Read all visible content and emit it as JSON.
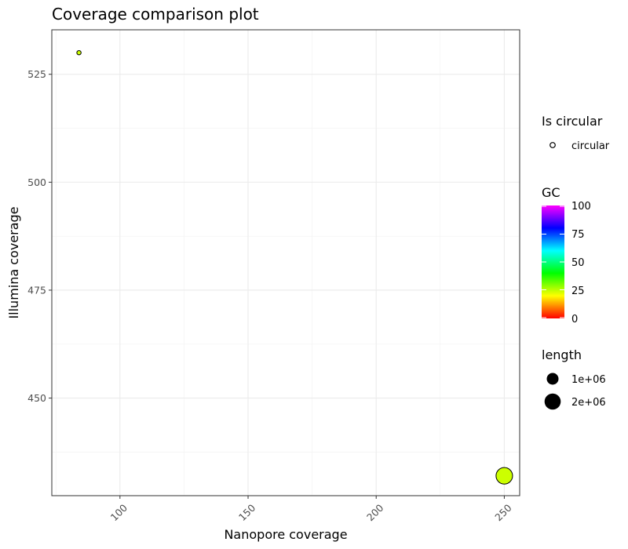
{
  "chart_data": {
    "type": "scatter",
    "title": "Coverage comparison plot",
    "xlabel": "Nanopore coverage",
    "ylabel": "Illumina coverage",
    "xlim": [
      73.4,
      256
    ],
    "ylim": [
      427.4,
      535.3
    ],
    "xticks": [
      100,
      150,
      200,
      250
    ],
    "yticks": [
      450,
      475,
      500,
      525
    ],
    "grid": true,
    "points": [
      {
        "x": 84,
        "y": 530,
        "gc": 24,
        "length": 20000,
        "is_circular": "circular"
      },
      {
        "x": 250,
        "y": 432,
        "gc": 24,
        "length": 2100000,
        "is_circular": "circular"
      }
    ],
    "legend": {
      "placement": "right",
      "shape": {
        "title": "Is circular",
        "items": [
          "circular"
        ]
      },
      "color": {
        "title": "GC",
        "range": [
          0,
          100
        ],
        "ticks": [
          "100",
          "75",
          "50",
          "25",
          "0"
        ],
        "colors": [
          "#ff0000",
          "#ffff00",
          "#00ff00",
          "#00ffff",
          "#0000ff",
          "#ff00ff"
        ]
      },
      "size": {
        "title": "length",
        "items": [
          "1e+06",
          "2e+06"
        ],
        "values": [
          1000000,
          2000000
        ]
      }
    }
  }
}
